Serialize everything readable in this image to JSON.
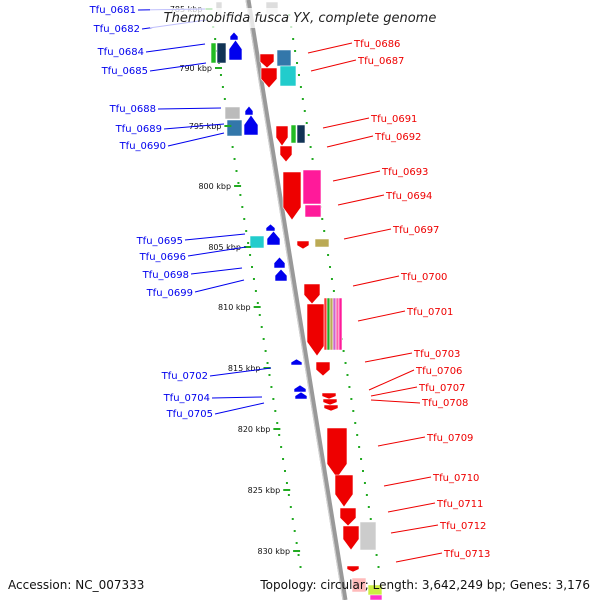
{
  "title": "Thermobifida fusca YX, complete genome",
  "footer": {
    "accession": "Accession: NC_007333",
    "stats": "Topology: circular; Length: 3,642,249 bp; Genes: 3,176"
  },
  "colors": {
    "forward": "#0000ee",
    "reverse": "#ee0000",
    "ruler": "#22aa22",
    "backbone": "#999999"
  },
  "ticks": [
    {
      "label": "785 kbp"
    },
    {
      "label": "790 kbp"
    },
    {
      "label": "795 kbp"
    },
    {
      "label": "800 kbp"
    },
    {
      "label": "805 kbp"
    },
    {
      "label": "810 kbp"
    },
    {
      "label": "815 kbp"
    },
    {
      "label": "820 kbp"
    },
    {
      "label": "825 kbp"
    },
    {
      "label": "830 kbp"
    }
  ],
  "forward_labels": [
    "Tfu_0681",
    "Tfu_0682",
    "Tfu_0684",
    "Tfu_0685",
    "Tfu_0688",
    "Tfu_0689",
    "Tfu_0690",
    "Tfu_0695",
    "Tfu_0696",
    "Tfu_0698",
    "Tfu_0699",
    "Tfu_0702",
    "Tfu_0704",
    "Tfu_0705"
  ],
  "reverse_labels": [
    "Tfu_0686",
    "Tfu_0687",
    "Tfu_0691",
    "Tfu_0692",
    "Tfu_0693",
    "Tfu_0694",
    "Tfu_0697",
    "Tfu_0700",
    "Tfu_0701",
    "Tfu_0703",
    "Tfu_0706",
    "Tfu_0707",
    "Tfu_0708",
    "Tfu_0709",
    "Tfu_0710",
    "Tfu_0711",
    "Tfu_0712",
    "Tfu_0713"
  ]
}
